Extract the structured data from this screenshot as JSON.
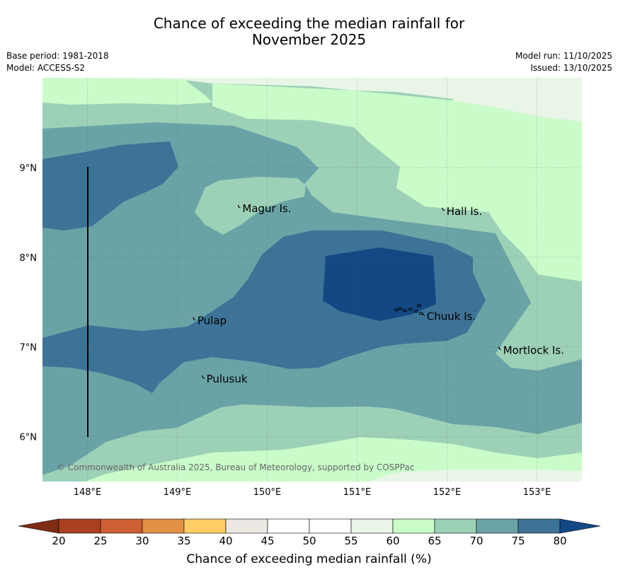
{
  "title_line1": "Chance of exceeding the median rainfall for",
  "title_line2": "November 2025",
  "base_period": "Base period: 1981-2018",
  "model": "Model: ACCESS-S2",
  "model_run": "Model run: 11/10/2025",
  "issued": "Issued: 13/10/2025",
  "copyright": "© Commonwealth of Australia 2025, Bureau of Meteorology, supported by COSPPac",
  "lon_labels": [
    "148°E",
    "149°E",
    "150°E",
    "151°E",
    "152°E",
    "153°E"
  ],
  "lat_labels": [
    "9°N",
    "8°N",
    "7°N",
    "6°N"
  ],
  "places": [
    {
      "name": "Magur Is.",
      "lon": 149.7,
      "lat": 8.55
    },
    {
      "name": "Hall Is.",
      "lon": 151.97,
      "lat": 8.52
    },
    {
      "name": "Pulap",
      "lon": 149.2,
      "lat": 7.3
    },
    {
      "name": "Chuuk Is.",
      "lon": 151.75,
      "lat": 7.35
    },
    {
      "name": "Mortlock Is.",
      "lon": 152.6,
      "lat": 6.97
    },
    {
      "name": "Pulusuk",
      "lon": 149.3,
      "lat": 6.65
    }
  ],
  "colorbar": {
    "label": "Chance of exceeding median rainfall (%)",
    "ticks": [
      "20",
      "25",
      "30",
      "35",
      "40",
      "45",
      "50",
      "55",
      "60",
      "65",
      "70",
      "75",
      "80"
    ],
    "colors": [
      "#a9401f",
      "#cc5f33",
      "#e29044",
      "#ffcc66",
      "#ebe8e3",
      "#ffffff",
      "#ffffff",
      "#e8f5e7",
      "#c9fcc9",
      "#9dd1b7",
      "#6aa3a6",
      "#3d7396"
    ],
    "under_color": "#7e2c14",
    "over_color": "#124985"
  },
  "chart_data": {
    "type": "contour_map",
    "variable": "Chance of exceeding median rainfall (%)",
    "lon_range": [
      147.5,
      153.5
    ],
    "lat_range": [
      5.5,
      10.0
    ],
    "levels": [
      20,
      25,
      30,
      35,
      40,
      45,
      50,
      55,
      60,
      65,
      70,
      75,
      80
    ],
    "bands": [
      {
        "range": "55-60",
        "color": "#e8f5e7",
        "where": "north-east corner near 10°N"
      },
      {
        "range": "60-65",
        "color": "#c9fcc9",
        "where": "north and east edges, far south"
      },
      {
        "range": "65-70",
        "color": "#9dd1b7",
        "where": "around Magur Is., east and south"
      },
      {
        "range": "70-75",
        "color": "#6aa3a6",
        "where": "central broad region"
      },
      {
        "range": "75-80",
        "color": "#3d7396",
        "where": "north-west 148-149°E near 9°N and band 7-8°N"
      },
      {
        "range": ">80",
        "color": "#124985",
        "where": "centred near 151.2°E, 7.7°N west of Chuuk Is."
      }
    ]
  }
}
